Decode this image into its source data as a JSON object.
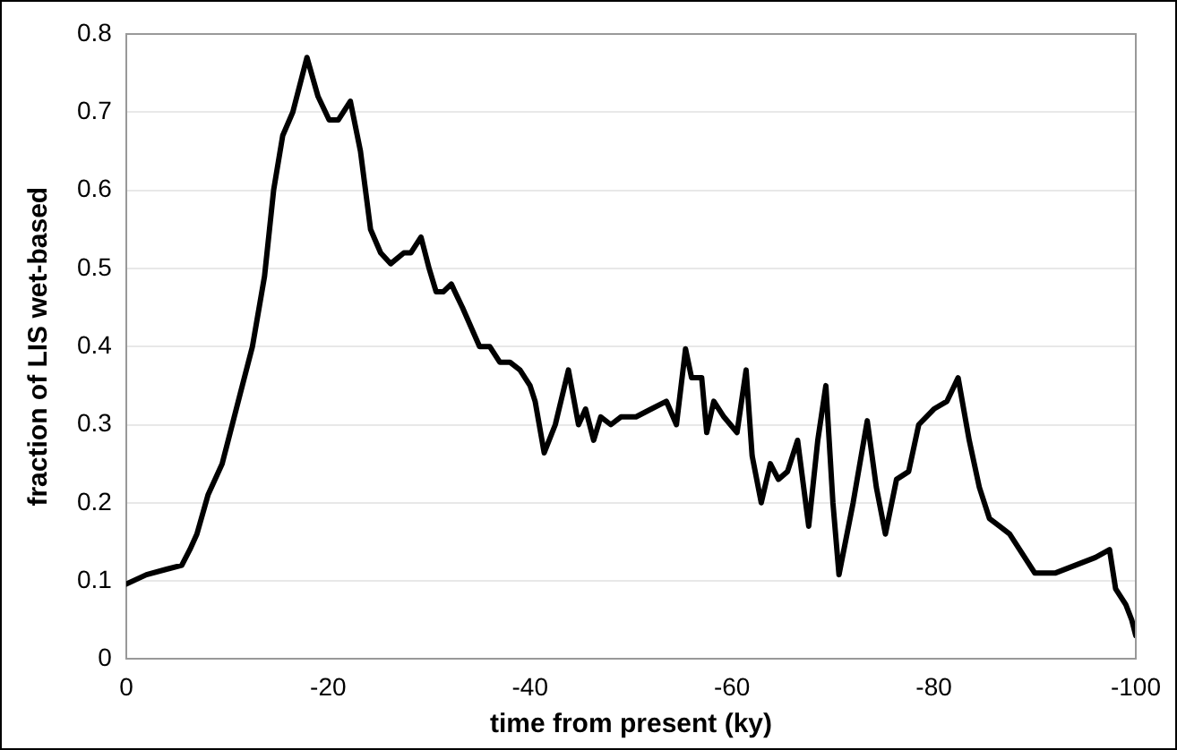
{
  "chart_data": {
    "type": "line",
    "xlabel": "time from present (ky)",
    "ylabel": "fraction of LIS wet-based",
    "xlim": [
      0,
      -100
    ],
    "ylim": [
      0,
      0.8
    ],
    "xticks": [
      0,
      -20,
      -40,
      -60,
      -80,
      -100
    ],
    "yticks": [
      0,
      0.1,
      0.2,
      0.3,
      0.4,
      0.5,
      0.6,
      0.7,
      0.8
    ],
    "grid": "y",
    "legend": false,
    "marker": "none",
    "line_style": "solid",
    "series": [
      {
        "color": "#000000",
        "x": [
          0,
          -2,
          -4,
          -5.5,
          -6.3,
          -7,
          -8.1,
          -9.5,
          -11.3,
          -12.5,
          -13.7,
          -14.6,
          -15.5,
          -16.5,
          -17.9,
          -19,
          -20.1,
          -21,
          -22.2,
          -23.2,
          -24.2,
          -25.2,
          -26.2,
          -27.5,
          -28.2,
          -29.2,
          -30,
          -30.7,
          -31.4,
          -32.2,
          -33.3,
          -35,
          -36,
          -37,
          -38,
          -39,
          -40,
          -40.5,
          -41.4,
          -42.5,
          -43.8,
          -44.8,
          -45.5,
          -46.3,
          -47,
          -48,
          -49,
          -50.5,
          -52,
          -53.5,
          -54.5,
          -55.4,
          -56,
          -57,
          -57.5,
          -58.2,
          -59.2,
          -60.5,
          -61.4,
          -62,
          -62.9,
          -63.8,
          -64.6,
          -65.5,
          -66.5,
          -67.6,
          -68.5,
          -69.3,
          -70,
          -70.6,
          -72,
          -73.4,
          -74.3,
          -75.2,
          -76.3,
          -77.5,
          -78.5,
          -80,
          -81.3,
          -82.4,
          -83.5,
          -84.5,
          -85.5,
          -86.5,
          -87.5,
          -88.5,
          -90,
          -92,
          -94,
          -96,
          -97.4,
          -98,
          -99,
          -99.6,
          -100
        ],
        "values": [
          0.096,
          0.108,
          0.115,
          0.12,
          0.14,
          0.16,
          0.21,
          0.25,
          0.34,
          0.4,
          0.49,
          0.6,
          0.67,
          0.7,
          0.77,
          0.72,
          0.69,
          0.69,
          0.714,
          0.65,
          0.55,
          0.52,
          0.506,
          0.52,
          0.52,
          0.54,
          0.5,
          0.47,
          0.47,
          0.48,
          0.45,
          0.4,
          0.4,
          0.38,
          0.38,
          0.37,
          0.35,
          0.33,
          0.264,
          0.3,
          0.37,
          0.3,
          0.32,
          0.28,
          0.31,
          0.3,
          0.31,
          0.31,
          0.32,
          0.33,
          0.3,
          0.397,
          0.36,
          0.36,
          0.29,
          0.33,
          0.31,
          0.29,
          0.37,
          0.26,
          0.2,
          0.25,
          0.23,
          0.24,
          0.28,
          0.17,
          0.28,
          0.35,
          0.2,
          0.108,
          0.2,
          0.305,
          0.22,
          0.16,
          0.23,
          0.24,
          0.3,
          0.32,
          0.33,
          0.36,
          0.28,
          0.22,
          0.18,
          0.17,
          0.16,
          0.14,
          0.11,
          0.11,
          0.12,
          0.13,
          0.14,
          0.09,
          0.07,
          0.05,
          0.03
        ]
      }
    ]
  }
}
